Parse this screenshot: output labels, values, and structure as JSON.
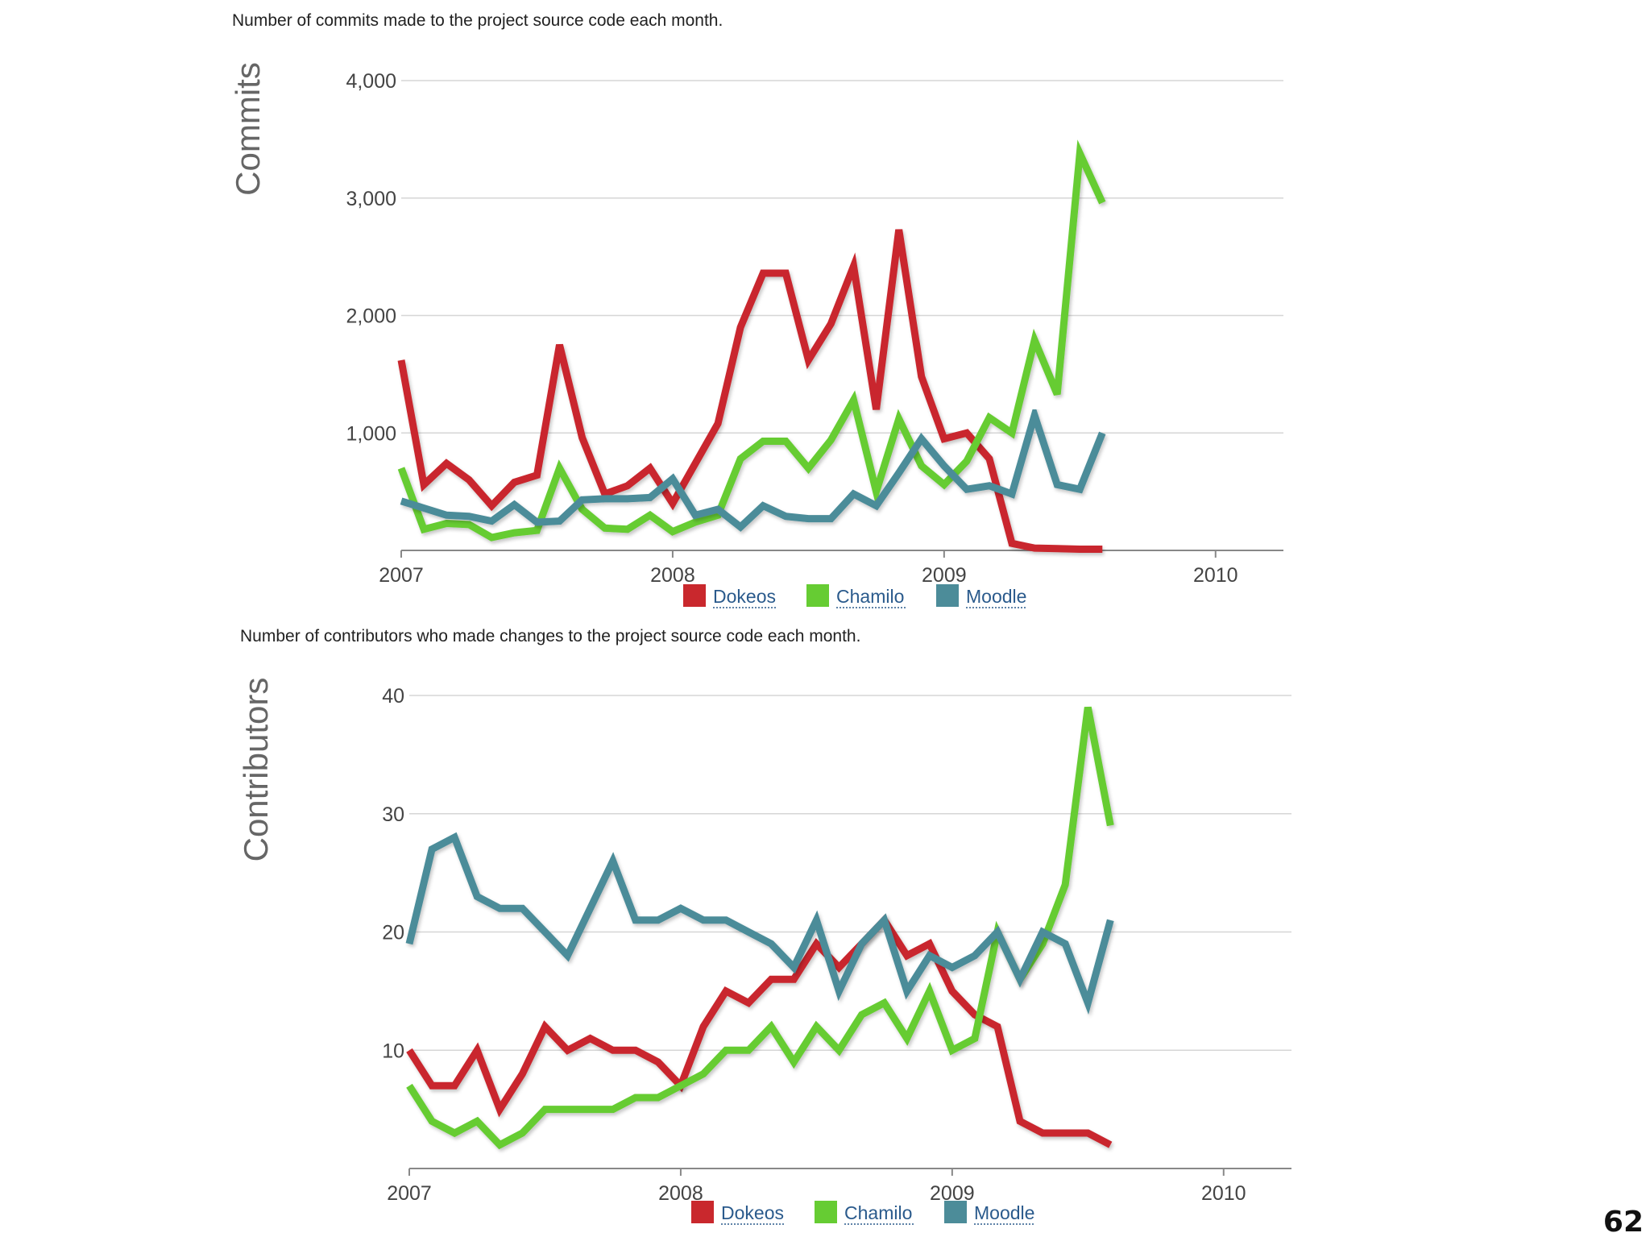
{
  "page_number": "62",
  "colors": {
    "Dokeos": "#c9282d",
    "Chamilo": "#66cc33",
    "Moodle": "#4c8c99"
  },
  "chart_data": [
    {
      "type": "line",
      "caption": "Number of commits made to the project source code each month.",
      "ylabel": "Commits",
      "xlabel": "",
      "ylim": [
        0,
        4000
      ],
      "yticks": [
        1000,
        2000,
        3000,
        4000
      ],
      "ytick_labels": [
        "1,000",
        "2,000",
        "3,000",
        "4,000"
      ],
      "x_start": 2007.0,
      "x_step": 0.08333,
      "xlim": [
        2007.0,
        2010.25
      ],
      "xticks": [
        2007,
        2008,
        2009,
        2010
      ],
      "xtick_labels": [
        "2007",
        "2008",
        "2009",
        "2010"
      ],
      "series": [
        {
          "name": "Dokeos",
          "values": [
            1620,
            560,
            740,
            600,
            380,
            580,
            640,
            1750,
            960,
            480,
            550,
            700,
            400,
            740,
            1080,
            1900,
            2360,
            2360,
            1620,
            1930,
            2420,
            1200,
            2730,
            1480,
            950,
            1000,
            780,
            60,
            20,
            15,
            10,
            10
          ]
        },
        {
          "name": "Chamilo",
          "values": [
            700,
            180,
            230,
            220,
            110,
            150,
            170,
            700,
            350,
            190,
            180,
            300,
            160,
            240,
            300,
            780,
            930,
            930,
            700,
            940,
            1280,
            500,
            1120,
            720,
            560,
            760,
            1130,
            1000,
            1790,
            1330,
            3380,
            2960
          ]
        },
        {
          "name": "Moodle",
          "values": [
            420,
            360,
            300,
            290,
            250,
            390,
            240,
            250,
            430,
            440,
            440,
            450,
            610,
            300,
            350,
            200,
            380,
            290,
            270,
            270,
            480,
            380,
            660,
            950,
            720,
            520,
            550,
            480,
            1150,
            560,
            520,
            1000
          ]
        }
      ],
      "legend": [
        "Dokeos",
        "Chamilo",
        "Moodle"
      ],
      "legend_position": "bottom-center"
    },
    {
      "type": "line",
      "caption": "Number of contributors who made changes to the project source code each month.",
      "ylabel": "Contributors",
      "xlabel": "",
      "ylim": [
        0,
        40
      ],
      "yticks": [
        10,
        20,
        30,
        40
      ],
      "ytick_labels": [
        "10",
        "20",
        "30",
        "40"
      ],
      "x_start": 2007.0,
      "x_step": 0.08333,
      "xlim": [
        2007.0,
        2010.25
      ],
      "xticks": [
        2007,
        2008,
        2009,
        2010
      ],
      "xtick_labels": [
        "2007",
        "2008",
        "2009",
        "2010"
      ],
      "series": [
        {
          "name": "Dokeos",
          "values": [
            10,
            7,
            7,
            10,
            5,
            8,
            12,
            10,
            11,
            10,
            10,
            9,
            7,
            12,
            15,
            14,
            16,
            16,
            19,
            17,
            19,
            21,
            18,
            19,
            15,
            13,
            12,
            4,
            3,
            3,
            3,
            2
          ]
        },
        {
          "name": "Chamilo",
          "values": [
            7,
            4,
            3,
            4,
            2,
            3,
            5,
            5,
            5,
            5,
            6,
            6,
            7,
            8,
            10,
            10,
            12,
            9,
            12,
            10,
            13,
            14,
            11,
            15,
            10,
            11,
            20,
            16,
            19,
            24,
            39,
            29
          ]
        },
        {
          "name": "Moodle",
          "values": [
            19,
            27,
            28,
            23,
            22,
            22,
            20,
            18,
            22,
            26,
            21,
            21,
            22,
            21,
            21,
            20,
            19,
            17,
            21,
            15,
            19,
            21,
            15,
            18,
            17,
            18,
            20,
            16,
            20,
            19,
            14,
            21
          ]
        }
      ],
      "legend": [
        "Dokeos",
        "Chamilo",
        "Moodle"
      ],
      "legend_position": "bottom-center"
    }
  ]
}
